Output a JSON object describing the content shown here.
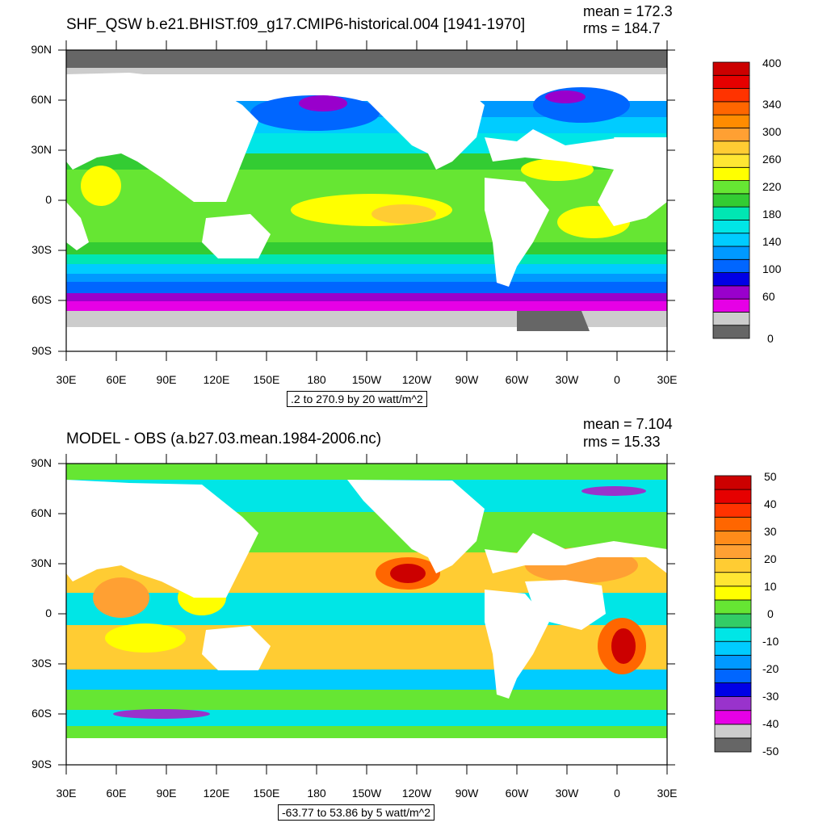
{
  "panels": [
    {
      "title": "SHF_QSW b.e21.BHIST.f09_g17.CMIP6-historical.004 [1941-1970]",
      "mean": "mean = 172.3",
      "rms": "rms = 184.7",
      "range_text": ".2 to 270.9 by 20 watt/m^2",
      "colorbar_labels": [
        "400",
        "340",
        "300",
        "260",
        "220",
        "180",
        "140",
        "100",
        "60",
        "0"
      ]
    },
    {
      "title": "MODEL - OBS (a.b27.03.mean.1984-2006.nc)",
      "mean": "mean = 7.104",
      "rms": "rms = 15.33",
      "range_text": "-63.77 to 53.86 by 5 watt/m^2",
      "colorbar_labels": [
        "50",
        "40",
        "30",
        "20",
        "10",
        "0",
        "-10",
        "-20",
        "-30",
        "-40",
        "-50"
      ]
    }
  ],
  "lat_labels": [
    "90N",
    "60N",
    "30N",
    "0",
    "30S",
    "60S",
    "90S"
  ],
  "lon_labels": [
    "30E",
    "60E",
    "90E",
    "120E",
    "150E",
    "180",
    "150W",
    "120W",
    "90W",
    "60W",
    "30W",
    "0",
    "30E"
  ],
  "colors": {
    "top_colorbar": [
      "#666666",
      "#cccccc",
      "#e600e6",
      "#9900cc",
      "#0000e6",
      "#0066ff",
      "#0099ff",
      "#00ccff",
      "#00e6e6",
      "#00e6b3",
      "#33cc33",
      "#66e633",
      "#ffff00",
      "#ffe633",
      "#ffcc33",
      "#ffa033",
      "#ff8c00",
      "#ff6600",
      "#ff3300",
      "#e60000",
      "#cc0000"
    ],
    "bottom_colorbar": [
      "#666666",
      "#cccccc",
      "#e600e6",
      "#9933cc",
      "#0000e6",
      "#0066ff",
      "#0099ff",
      "#00ccff",
      "#00e6e6",
      "#33cc66",
      "#66e633",
      "#ffff00",
      "#ffe633",
      "#ffcc33",
      "#ffa033",
      "#ff8c1a",
      "#ff6600",
      "#ff3300",
      "#e60000",
      "#cc0000"
    ],
    "land": "#ffffff",
    "ice": "#666666"
  }
}
